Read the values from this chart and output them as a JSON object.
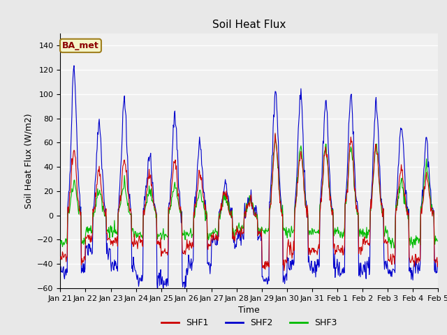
{
  "title": "Soil Heat Flux",
  "ylabel": "Soil Heat Flux (W/m2)",
  "xlabel": "Time",
  "ylim": [
    -60,
    150
  ],
  "yticks": [
    -60,
    -40,
    -20,
    0,
    20,
    40,
    60,
    80,
    100,
    120,
    140
  ],
  "colors": {
    "SHF1": "#cc0000",
    "SHF2": "#0000cc",
    "SHF3": "#00bb00"
  },
  "legend_label": "BA_met",
  "fig_bg_color": "#e8e8e8",
  "plot_bg_color": "#f0f0f0",
  "title_fontsize": 11,
  "label_fontsize": 9,
  "tick_fontsize": 8,
  "n_days": 15,
  "seed": 12345
}
